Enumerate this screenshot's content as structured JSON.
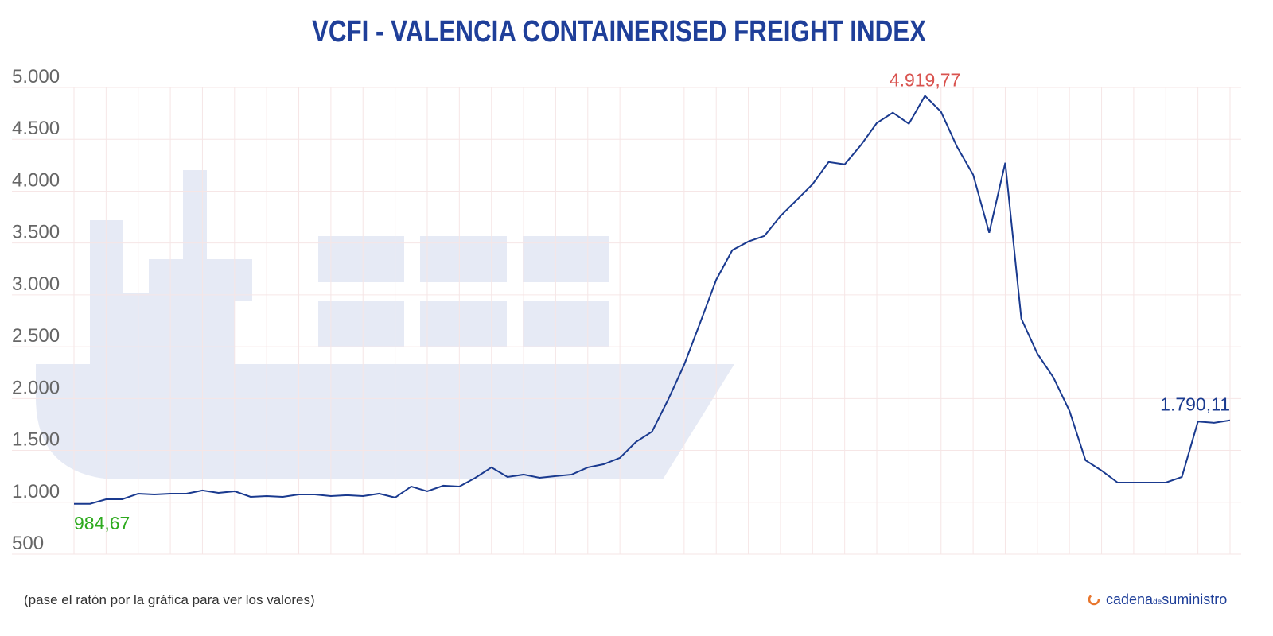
{
  "chart_data": {
    "type": "line",
    "title": "VCFI - VALENCIA CONTAINERISED FREIGHT INDEX",
    "note": "(pase el ratón por la gráfica para ver los valores)",
    "brand": {
      "name": "cadena",
      "joiner": "de",
      "tail": "suministro"
    },
    "color": "#1a3a8f",
    "grid": true,
    "categories": [
      null,
      null,
      null,
      null,
      null,
      null,
      null,
      null,
      null,
      null,
      null,
      null,
      null,
      null,
      null,
      null,
      null,
      null,
      null,
      null,
      null,
      null,
      null,
      null,
      null,
      null,
      null,
      null,
      null,
      null,
      null,
      null,
      null,
      null,
      null,
      null,
      null,
      null,
      null,
      null,
      null,
      null,
      null,
      null,
      null,
      null,
      null,
      null,
      null,
      null,
      null,
      null,
      null,
      null,
      null,
      null,
      null,
      null,
      null,
      null,
      null,
      null,
      null,
      null,
      null,
      null,
      null,
      null,
      null,
      null,
      null,
      null,
      null
    ],
    "values": [
      984.67,
      985,
      1029,
      1029,
      1083,
      1075,
      1083,
      1083,
      1114,
      1090,
      1106,
      1052,
      1060,
      1052,
      1075,
      1075,
      1060,
      1068,
      1060,
      1083,
      1045,
      1152,
      1106,
      1160,
      1152,
      1236,
      1336,
      1244,
      1267,
      1236,
      1252,
      1267,
      1336,
      1367,
      1428,
      1582,
      1681,
      1988,
      2325,
      2732,
      3146,
      3430,
      3514,
      3568,
      3760,
      3913,
      4067,
      4281,
      4258,
      4442,
      4657,
      4757,
      4650,
      4919.77,
      4765,
      4427,
      4159,
      3599,
      4274,
      2770,
      2433,
      2203,
      1881,
      1405,
      1305,
      1190,
      1190,
      1190,
      1190,
      1244,
      1778,
      1766,
      1790.11
    ],
    "value_labels": [
      "984,67",
      null,
      null,
      null,
      null,
      null,
      null,
      null,
      null,
      null,
      null,
      null,
      null,
      null,
      null,
      null,
      null,
      null,
      null,
      null,
      null,
      null,
      null,
      null,
      null,
      null,
      null,
      null,
      null,
      null,
      null,
      null,
      null,
      null,
      null,
      null,
      null,
      null,
      null,
      null,
      null,
      null,
      null,
      null,
      null,
      null,
      null,
      null,
      null,
      null,
      null,
      null,
      null,
      "4.919,77",
      null,
      null,
      null,
      null,
      null,
      null,
      null,
      null,
      null,
      null,
      null,
      null,
      null,
      null,
      null,
      null,
      null,
      null,
      "1.790,11"
    ],
    "ylim": [
      500,
      5000
    ],
    "yticks": [
      500,
      {
        "value": 1000,
        "label": "1.000"
      },
      {
        "value": 1500,
        "label": "1.500"
      },
      {
        "value": 2000,
        "label": "2.000"
      },
      {
        "value": 2500,
        "label": "2.500"
      },
      {
        "value": 3000,
        "label": "3.000"
      },
      {
        "value": 3500,
        "label": "3.500"
      },
      {
        "value": 4000,
        "label": "4.000"
      },
      {
        "value": 4500,
        "label": "4.500"
      },
      {
        "value": 5000,
        "label": "5.000"
      }
    ]
  }
}
